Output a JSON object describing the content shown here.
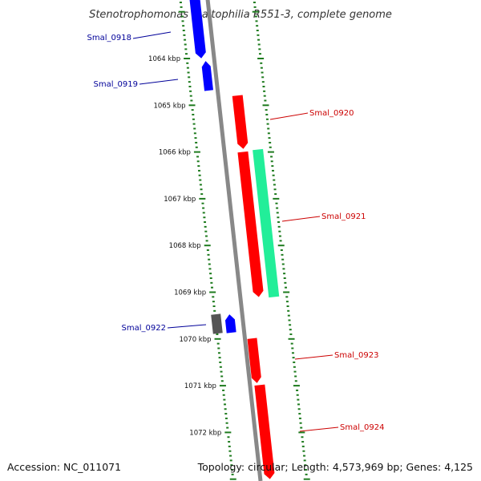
{
  "title": "Stenotrophomonas maltophilia R551-3, complete genome",
  "footer": {
    "accession": "Accession: NC_011071",
    "topology": "Topology: circular; Length: 4,573,969 bp; Genes: 4,125"
  },
  "colors": {
    "forward_gene": "#ff0000",
    "reverse_gene": "#0000ff",
    "other_gene": "#555555",
    "rna_gene": "#22ee99",
    "backbone": "#888888",
    "ticks": "#1e7b1e",
    "label_forward": "#cc0000",
    "label_reverse": "#000099"
  },
  "scale": {
    "unit": "kbp",
    "labels": [
      "1064 kbp",
      "1065 kbp",
      "1066 kbp",
      "1067 kbp",
      "1068 kbp",
      "1069 kbp",
      "1070 kbp",
      "1071 kbp",
      "1072 kbp"
    ]
  },
  "genes": [
    {
      "label": "Smal_0918",
      "strand": "reverse"
    },
    {
      "label": "Smal_0919",
      "strand": "reverse"
    },
    {
      "label": "Smal_0920",
      "strand": "forward"
    },
    {
      "label": "Smal_0921",
      "strand": "forward"
    },
    {
      "label": "",
      "strand": "forward",
      "type": "rna"
    },
    {
      "label": "",
      "strand": "other"
    },
    {
      "label": "Smal_0922",
      "strand": "reverse"
    },
    {
      "label": "Smal_0923",
      "strand": "forward"
    },
    {
      "label": "Smal_0924",
      "strand": "forward"
    }
  ]
}
